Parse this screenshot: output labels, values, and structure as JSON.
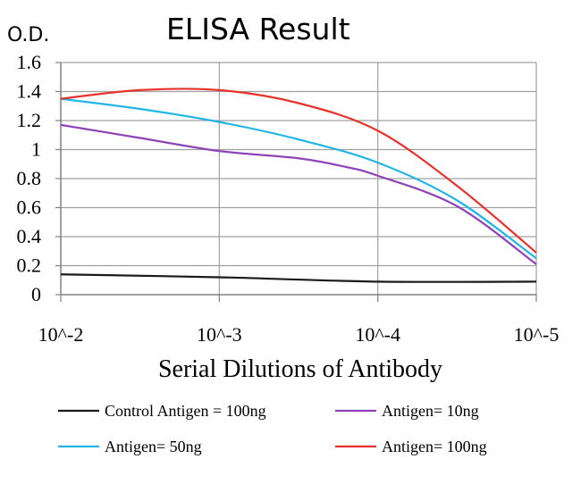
{
  "chart_data": {
    "type": "line",
    "title": "ELISA Result",
    "ylabel": "O.D.",
    "xlabel": "Serial Dilutions of Antibody",
    "x_ticks": [
      "10^-2",
      "10^-3",
      "10^-4",
      "10^-5"
    ],
    "y_ticks": [
      "0",
      "0.2",
      "0.4",
      "0.6",
      "0.8",
      "1",
      "1.2",
      "1.4",
      "1.6"
    ],
    "ylim": [
      0,
      1.6
    ],
    "grid": "vertical and horizontal",
    "legend_position": "bottom",
    "series": [
      {
        "name": "Control Antigen = 100ng",
        "color": "#1a1a1a",
        "points": [
          [
            0,
            0.14
          ],
          [
            1,
            0.12
          ],
          [
            2,
            0.09
          ],
          [
            3,
            0.09
          ]
        ]
      },
      {
        "name": "Antigen= 10ng",
        "color": "#8e44b8",
        "points": [
          [
            0,
            1.17
          ],
          [
            0.5,
            1.08
          ],
          [
            1,
            0.99
          ],
          [
            1.5,
            0.94
          ],
          [
            1.8,
            0.88
          ],
          [
            2,
            0.82
          ],
          [
            2.5,
            0.61
          ],
          [
            3,
            0.21
          ]
        ]
      },
      {
        "name": "Antigen= 50ng",
        "color": "#22b6e6",
        "points": [
          [
            0,
            1.35
          ],
          [
            0.5,
            1.28
          ],
          [
            1,
            1.19
          ],
          [
            1.5,
            1.07
          ],
          [
            2,
            0.91
          ],
          [
            2.5,
            0.65
          ],
          [
            3,
            0.25
          ]
        ]
      },
      {
        "name": "Antigen= 100ng",
        "color": "#e8312a",
        "points": [
          [
            0,
            1.35
          ],
          [
            0.5,
            1.41
          ],
          [
            1,
            1.41
          ],
          [
            1.5,
            1.32
          ],
          [
            2,
            1.13
          ],
          [
            2.5,
            0.75
          ],
          [
            3,
            0.29
          ]
        ]
      }
    ]
  }
}
